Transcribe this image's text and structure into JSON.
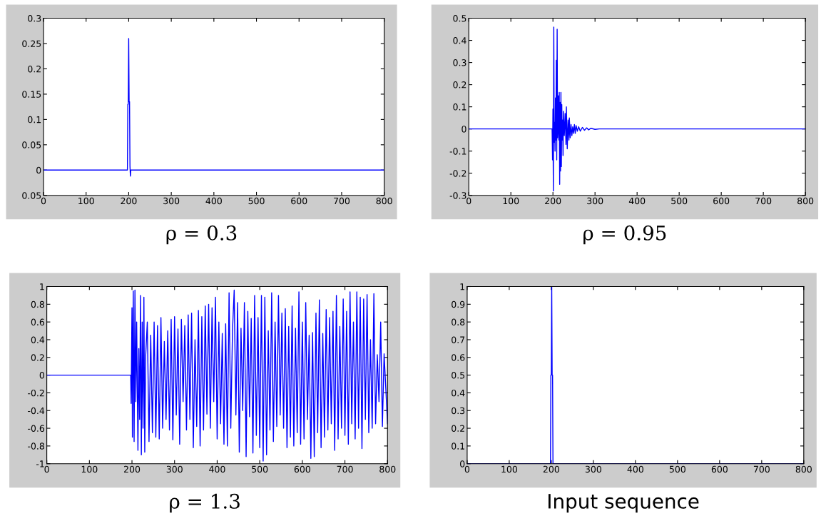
{
  "chart_data": [
    {
      "type": "line",
      "xlabel": "ρ = 0.3",
      "xlim": [
        0,
        800
      ],
      "xticks": [
        0,
        100,
        200,
        300,
        400,
        500,
        600,
        700,
        800
      ],
      "ylim": [
        -0.05,
        0.3
      ],
      "yticks": [
        {
          "value": -0.05,
          "label": "0.05"
        },
        0,
        0.05,
        0.1,
        0.15,
        0.2,
        0.25,
        0.3
      ],
      "grid": false,
      "legend": false,
      "series": [
        {
          "color": "#0000ff",
          "x": [
            0,
            197,
            198,
            199,
            200,
            201,
            202,
            203,
            204,
            205,
            800
          ],
          "values": [
            0,
            0,
            0.13,
            0.13,
            0.26,
            0.135,
            0.135,
            0.008,
            -0.012,
            0,
            0
          ]
        }
      ]
    },
    {
      "type": "line",
      "xlabel": "ρ = 0.95",
      "xlim": [
        0,
        800
      ],
      "xticks": [
        0,
        100,
        200,
        300,
        400,
        500,
        600,
        700,
        800
      ],
      "ylim": [
        -0.3,
        0.5
      ],
      "yticks": [
        -0.3,
        -0.2,
        -0.1,
        0,
        0.1,
        0.2,
        0.3,
        0.4,
        0.5
      ],
      "grid": false,
      "legend": false,
      "series": [
        {
          "color": "#0000ff",
          "x": [
            0,
            198,
            199,
            200,
            201,
            202,
            203,
            204,
            205,
            206,
            207,
            208,
            209,
            210,
            211,
            212,
            213,
            214,
            215,
            216,
            217,
            218,
            219,
            220,
            221,
            222,
            223,
            224,
            225,
            227,
            229,
            231,
            232,
            234,
            236,
            238,
            239,
            241,
            243,
            245,
            247,
            249,
            251,
            253,
            255,
            258,
            261,
            265,
            270,
            275,
            280,
            285,
            290,
            300,
            310,
            800
          ],
          "values": [
            0,
            0,
            -0.14,
            0.09,
            -0.28,
            0.46,
            -0.06,
            0.03,
            -0.1,
            0.14,
            -0.05,
            0.31,
            -0.14,
            0.45,
            -0.04,
            0.0,
            0.15,
            -0.05,
            0.165,
            -0.25,
            0.12,
            -0.19,
            0.165,
            -0.17,
            0.11,
            -0.05,
            0.04,
            -0.12,
            0.08,
            -0.03,
            0.07,
            -0.07,
            0.1,
            -0.09,
            0.04,
            -0.05,
            0.05,
            -0.04,
            0.02,
            -0.03,
            0.01,
            -0.02,
            0.02,
            -0.02,
            0.015,
            -0.01,
            0.01,
            -0.01,
            0.007,
            -0.006,
            0.005,
            -0.004,
            0.003,
            -0.002,
            0,
            0
          ]
        }
      ]
    },
    {
      "type": "line",
      "xlabel": "ρ = 1.3",
      "xlim": [
        0,
        800
      ],
      "xticks": [
        0,
        100,
        200,
        300,
        400,
        500,
        600,
        700,
        800
      ],
      "ylim": [
        -1,
        1
      ],
      "yticks": [
        -1,
        -0.8,
        -0.6,
        -0.4,
        -0.2,
        0,
        0.2,
        0.4,
        0.6,
        0.8,
        1
      ],
      "grid": false,
      "legend": false,
      "series": [
        {
          "color": "#0000ff",
          "x": [
            0,
            197,
            198,
            200,
            201,
            203,
            205,
            207,
            209,
            211,
            214,
            216,
            218,
            220,
            222,
            224,
            226,
            228,
            230,
            232,
            236,
            240,
            244,
            248,
            252,
            256,
            260,
            264,
            268,
            272,
            276,
            280,
            284,
            288,
            292,
            296,
            300,
            304,
            308,
            312,
            316,
            320,
            324,
            328,
            332,
            336,
            340,
            344,
            348,
            352,
            356,
            360,
            364,
            368,
            372,
            376,
            380,
            384,
            388,
            392,
            396,
            400,
            404,
            408,
            412,
            416,
            420,
            424,
            428,
            432,
            436,
            440,
            444,
            448,
            452,
            456,
            460,
            464,
            468,
            472,
            476,
            480,
            484,
            488,
            492,
            496,
            500,
            504,
            508,
            512,
            516,
            520,
            524,
            528,
            532,
            536,
            540,
            544,
            548,
            552,
            556,
            560,
            564,
            568,
            572,
            576,
            580,
            584,
            588,
            592,
            596,
            600,
            604,
            608,
            612,
            616,
            620,
            624,
            628,
            632,
            636,
            640,
            644,
            648,
            652,
            656,
            660,
            664,
            668,
            672,
            676,
            680,
            684,
            688,
            692,
            696,
            700,
            704,
            708,
            712,
            716,
            720,
            724,
            728,
            732,
            736,
            740,
            744,
            748,
            752,
            756,
            760,
            764,
            768,
            772,
            776,
            780,
            784,
            788,
            792,
            796,
            800
          ],
          "values": [
            0,
            0,
            -0.32,
            0.76,
            -0.7,
            0.95,
            -0.75,
            0.96,
            -0.3,
            0.6,
            -0.85,
            0.3,
            -0.5,
            0.9,
            -0.9,
            0.6,
            -0.6,
            0.88,
            -0.87,
            0.2,
            0.6,
            -0.75,
            0.45,
            -0.65,
            0.6,
            -0.7,
            0.56,
            -0.72,
            0.65,
            -0.6,
            0.38,
            -0.5,
            0.5,
            -0.62,
            0.63,
            -0.73,
            0.66,
            -0.45,
            0.52,
            -0.78,
            0.63,
            -0.3,
            0.56,
            -0.62,
            0.68,
            -0.5,
            0.7,
            -0.82,
            0.4,
            -0.58,
            0.73,
            -0.8,
            0.66,
            -0.62,
            0.78,
            -0.44,
            0.8,
            -0.6,
            0.76,
            -0.3,
            0.88,
            -0.72,
            0.6,
            -0.55,
            0.47,
            -0.78,
            0.58,
            -0.8,
            0.93,
            -0.6,
            0.5,
            0.96,
            -0.45,
            0.82,
            -0.87,
            0.53,
            -0.4,
            0.82,
            -0.92,
            0.72,
            -0.47,
            0.64,
            -0.88,
            0.9,
            -0.68,
            0.65,
            -0.82,
            0.9,
            -0.97,
            0.88,
            -0.9,
            0.5,
            -0.62,
            0.93,
            -0.75,
            0.6,
            -0.58,
            0.9,
            -0.45,
            0.7,
            -0.6,
            0.75,
            -0.82,
            0.55,
            -0.7,
            0.78,
            -0.8,
            0.53,
            -0.65,
            0.94,
            -0.78,
            0.6,
            -0.72,
            0.82,
            -0.5,
            0.45,
            -0.94,
            0.48,
            -0.92,
            0.7,
            -0.65,
            0.85,
            -0.82,
            0.47,
            -0.7,
            0.74,
            -0.62,
            0.65,
            -0.55,
            0.72,
            -0.85,
            0.9,
            -0.72,
            0.55,
            -0.6,
            0.86,
            -0.68,
            0.72,
            -0.78,
            0.94,
            -0.55,
            0.6,
            -0.72,
            0.94,
            -0.6,
            0.88,
            -0.83,
            0.86,
            -0.5,
            0.91,
            -0.65,
            0.4,
            -0.6,
            0.92,
            -0.55,
            0.23,
            -0.3,
            0.6,
            -0.58,
            0.24,
            -0.15,
            -0.55
          ]
        }
      ]
    },
    {
      "type": "line",
      "xlabel": "Input sequence",
      "xlim": [
        0,
        800
      ],
      "xticks": [
        0,
        100,
        200,
        300,
        400,
        500,
        600,
        700,
        800
      ],
      "ylim": [
        0,
        1
      ],
      "yticks": [
        0,
        0.1,
        0.2,
        0.3,
        0.4,
        0.5,
        0.6,
        0.7,
        0.8,
        0.9,
        1
      ],
      "grid": false,
      "legend": false,
      "series": [
        {
          "color": "#0000ff",
          "x": [
            0,
            198,
            199,
            200,
            201,
            202,
            203,
            204,
            800
          ],
          "values": [
            0,
            0,
            0.5,
            0.5,
            1,
            0.5,
            0.5,
            0,
            0
          ]
        }
      ]
    }
  ]
}
